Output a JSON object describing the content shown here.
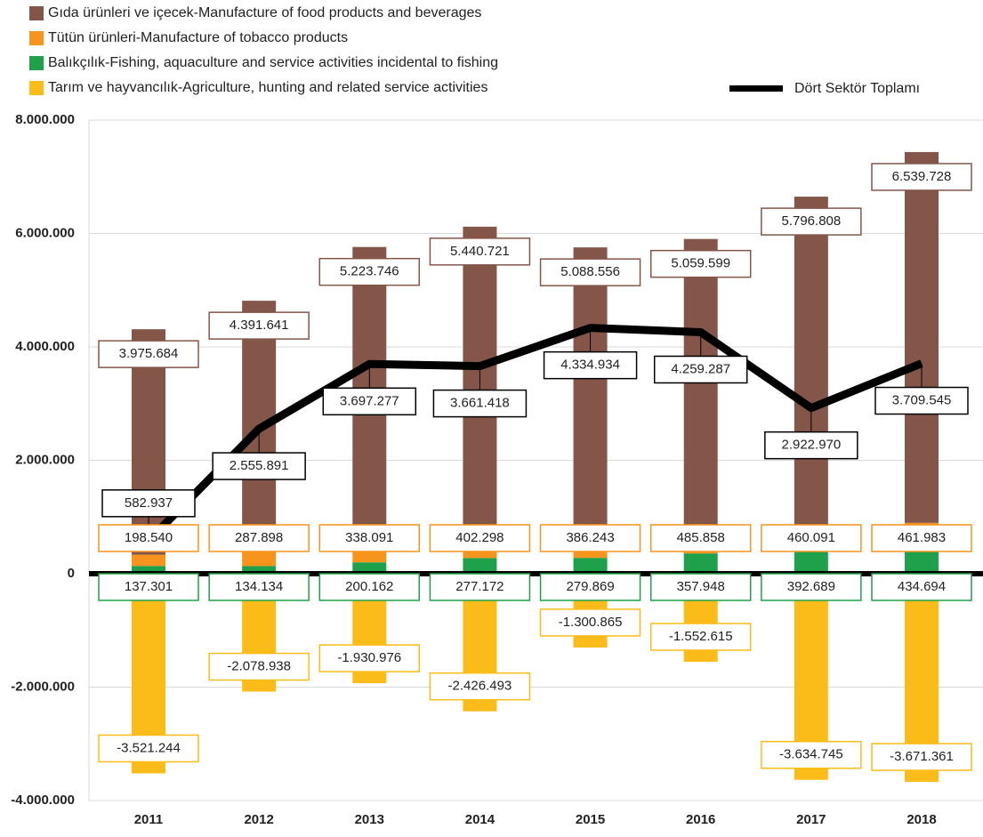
{
  "chart_data": {
    "type": "bar",
    "categories": [
      "2011",
      "2012",
      "2013",
      "2014",
      "2015",
      "2016",
      "2017",
      "2018"
    ],
    "series": [
      {
        "name": "Gıda ürünleri ve içecek-Manufacture of food products and beverages",
        "color": "#84564a",
        "values": [
          3975684,
          4391641,
          5223746,
          5440721,
          5088556,
          5059599,
          5796808,
          6539728
        ],
        "value_labels": [
          "3.975.684",
          "4.391.641",
          "5.223.746",
          "5.440.721",
          "5.088.556",
          "5.059.599",
          "5.796.808",
          "6.539.728"
        ]
      },
      {
        "name": "Tütün ürünleri-Manufacture of tobacco products",
        "color": "#f7941d",
        "values": [
          198540,
          287898,
          338091,
          402298,
          386243,
          485858,
          460091,
          461983
        ],
        "value_labels": [
          "198.540",
          "287.898",
          "338.091",
          "402.298",
          "386.243",
          "485.858",
          "460.091",
          "461.983"
        ]
      },
      {
        "name": "Balıkçılık-Fishing, aquaculture and service activities incidental to fishing",
        "color": "#1fa04a",
        "values": [
          137301,
          134134,
          200162,
          277172,
          279869,
          357948,
          392689,
          434694
        ],
        "value_labels": [
          "137.301",
          "134.134",
          "200.162",
          "277.172",
          "279.869",
          "357.948",
          "392.689",
          "434.694"
        ]
      },
      {
        "name": "Tarım ve hayvancılık-Agriculture, hunting and related service activities",
        "color": "#fbbc1a",
        "values": [
          -3521244,
          -2078938,
          -1930976,
          -2426493,
          -1300865,
          -1552615,
          -3634745,
          -3671361
        ],
        "value_labels": [
          "-3.521.244",
          "-2.078.938",
          "-1.930.976",
          "-2.426.493",
          "-1.300.865",
          "-1.552.615",
          "-3.634.745",
          "-3.671.361"
        ]
      },
      {
        "name": "Dört Sektör Toplamı",
        "color": "#000000",
        "type": "line",
        "values": [
          582937,
          2555891,
          3697277,
          3661418,
          4334934,
          4259287,
          2922970,
          3709545
        ],
        "value_labels": [
          "582.937",
          "2.555.891",
          "3.697.277",
          "3.661.418",
          "4.334.934",
          "4.259.287",
          "2.922.970",
          "3.709.545"
        ]
      }
    ],
    "ylim": [
      -4000000,
      8000000
    ],
    "yticks": [
      {
        "value": -4000000,
        "label": "-4.000.000"
      },
      {
        "value": -2000000,
        "label": "-2.000.000"
      },
      0,
      {
        "value": 2000000,
        "label": "2.000.000"
      },
      {
        "value": 4000000,
        "label": "4.000.000"
      },
      {
        "value": 6000000,
        "label": "6.000.000"
      },
      {
        "value": 8000000,
        "label": "8.000.000"
      }
    ],
    "grid": true
  }
}
